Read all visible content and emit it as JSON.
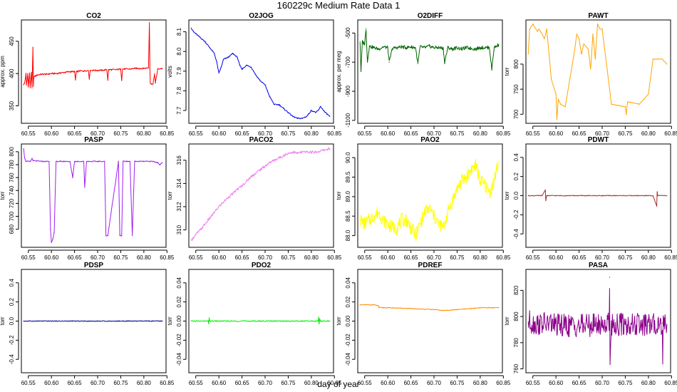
{
  "figure": {
    "title": "160229c   Medium Rate Data 1",
    "xlabel": "day of year"
  },
  "chart_data": [
    {
      "type": "line",
      "title": "CO2",
      "ylabel": "approx. ppm",
      "color": "#ff0000",
      "xlim": [
        60.535,
        60.848
      ],
      "ylim": [
        323,
        483
      ],
      "xticks": [
        60.55,
        60.6,
        60.65,
        60.7,
        60.75,
        60.8,
        60.85
      ],
      "yticks": [
        350,
        400,
        450
      ],
      "series": [
        {
          "x": [
            60.54,
            60.542,
            60.545,
            60.546,
            60.549,
            60.55,
            60.553,
            60.554,
            60.557,
            60.558,
            60.56,
            60.561,
            60.562,
            60.565,
            60.57,
            60.58,
            60.59,
            60.6,
            60.61,
            60.62,
            60.63,
            60.64,
            60.65,
            60.652,
            60.654,
            60.656,
            60.66,
            60.67,
            60.68,
            60.682,
            60.684,
            60.69,
            60.7,
            60.71,
            60.72,
            60.722,
            60.724,
            60.73,
            60.74,
            60.75,
            60.752,
            60.754,
            60.76,
            60.77,
            60.78,
            60.79,
            60.8,
            60.81,
            60.812,
            60.813,
            60.814,
            60.816,
            60.82,
            60.823,
            60.825,
            60.83,
            60.84
          ],
          "y": [
            383,
            385,
            400,
            382,
            400,
            380,
            401,
            378,
            402,
            378,
            440,
            380,
            395,
            396,
            398,
            399,
            399,
            400,
            400,
            401,
            402,
            403,
            403,
            390,
            403,
            403,
            404,
            404,
            405,
            392,
            405,
            405,
            405,
            405,
            406,
            390,
            406,
            406,
            406,
            407,
            390,
            407,
            407,
            407,
            408,
            408,
            408,
            409,
            479,
            409,
            385,
            384,
            384,
            400,
            385,
            407,
            408
          ]
        }
      ]
    },
    {
      "type": "line",
      "title": "O2JOG",
      "ylabel": "volts",
      "color": "#0000ee",
      "xlim": [
        60.535,
        60.848
      ],
      "ylim": [
        7.635,
        8.16
      ],
      "xticks": [
        60.55,
        60.6,
        60.65,
        60.7,
        60.75,
        60.8,
        60.85
      ],
      "yticks": [
        7.7,
        7.8,
        7.9,
        8.0,
        8.1
      ],
      "series": [
        {
          "x": [
            60.54,
            60.545,
            60.55,
            60.56,
            60.57,
            60.58,
            60.59,
            60.595,
            60.6,
            60.605,
            60.61,
            60.62,
            60.63,
            60.64,
            60.645,
            60.65,
            60.66,
            60.67,
            60.68,
            60.69,
            60.7,
            60.705,
            60.71,
            60.72,
            60.73,
            60.74,
            60.75,
            60.76,
            60.77,
            60.78,
            60.79,
            60.8,
            60.81,
            60.815,
            60.82,
            60.83,
            60.84
          ],
          "y": [
            8.12,
            8.1,
            8.09,
            8.07,
            8.05,
            8.02,
            7.99,
            7.95,
            7.89,
            7.92,
            7.96,
            7.97,
            7.99,
            7.97,
            7.93,
            7.91,
            7.93,
            7.92,
            7.88,
            7.85,
            7.83,
            7.8,
            7.77,
            7.73,
            7.73,
            7.71,
            7.69,
            7.67,
            7.66,
            7.66,
            7.67,
            7.7,
            7.69,
            7.7,
            7.72,
            7.69,
            7.67
          ]
        }
      ]
    },
    {
      "type": "line",
      "title": "O2DIFF",
      "ylabel": "approx. per meg",
      "color": "#006400",
      "xlim": [
        60.535,
        60.848
      ],
      "ylim": [
        -1120,
        -410
      ],
      "xticks": [
        60.55,
        60.6,
        60.65,
        60.7,
        60.75,
        60.8,
        60.85
      ],
      "yticks": [
        -1100,
        -900,
        -700,
        -500
      ],
      "series": [
        {
          "x": [
            60.54,
            60.542,
            60.545,
            60.55,
            60.553,
            60.556,
            60.56,
            60.57,
            60.58,
            60.59,
            60.6,
            60.603,
            60.61,
            60.62,
            60.63,
            60.64,
            60.65,
            60.66,
            60.665,
            60.67,
            60.68,
            60.69,
            60.7,
            60.71,
            60.72,
            60.723,
            60.73,
            60.74,
            60.75,
            60.76,
            60.77,
            60.78,
            60.79,
            60.8,
            60.81,
            60.82,
            60.825,
            60.83,
            60.84
          ],
          "y": [
            -560,
            -760,
            -560,
            -575,
            -470,
            -700,
            -590,
            -600,
            -610,
            -595,
            -600,
            -700,
            -605,
            -600,
            -595,
            -600,
            -595,
            -600,
            -710,
            -595,
            -600,
            -590,
            -600,
            -600,
            -605,
            -700,
            -600,
            -610,
            -600,
            -610,
            -600,
            -605,
            -610,
            -600,
            -600,
            -600,
            -750,
            -600,
            -580
          ]
        }
      ]
    },
    {
      "type": "line",
      "title": "PAWT",
      "ylabel": "torr",
      "color": "#ffa500",
      "xlim": [
        60.535,
        60.848
      ],
      "ylim": [
        682,
        888
      ],
      "xticks": [
        60.55,
        60.6,
        60.65,
        60.7,
        60.75,
        60.8,
        60.85
      ],
      "yticks": [
        700,
        750,
        800
      ],
      "series": [
        {
          "x": [
            60.54,
            60.543,
            60.55,
            60.56,
            60.563,
            60.57,
            60.575,
            60.58,
            60.59,
            60.6,
            60.602,
            60.605,
            60.61,
            60.62,
            60.63,
            60.64,
            60.645,
            60.65,
            60.655,
            60.66,
            60.67,
            60.675,
            60.68,
            60.685,
            60.69,
            60.695,
            60.7,
            60.72,
            60.75,
            60.752,
            60.755,
            60.78,
            60.8,
            60.81,
            60.82,
            60.83,
            60.84
          ],
          "y": [
            820,
            870,
            880,
            865,
            870,
            860,
            850,
            870,
            770,
            740,
            690,
            730,
            720,
            715,
            770,
            825,
            860,
            850,
            820,
            840,
            830,
            790,
            860,
            810,
            880,
            870,
            870,
            720,
            715,
            700,
            725,
            720,
            740,
            810,
            810,
            810,
            800
          ]
        }
      ]
    },
    {
      "type": "line",
      "title": "PASP",
      "ylabel": "torr",
      "color": "#a020f0",
      "xlim": [
        60.535,
        60.848
      ],
      "ylim": [
        652,
        812
      ],
      "xticks": [
        60.55,
        60.6,
        60.65,
        60.7,
        60.75,
        60.8,
        60.85
      ],
      "yticks": [
        680,
        700,
        720,
        740,
        760,
        780,
        800
      ],
      "series": [
        {
          "x": [
            60.54,
            60.542,
            60.545,
            60.555,
            60.558,
            60.56,
            60.58,
            60.595,
            60.598,
            60.6,
            60.603,
            60.606,
            60.61,
            60.62,
            60.64,
            60.646,
            60.65,
            60.67,
            60.672,
            60.676,
            60.7,
            60.715,
            60.718,
            60.722,
            60.745,
            60.748,
            60.752,
            60.755,
            60.77,
            60.775,
            60.78,
            60.82,
            60.83,
            60.835,
            60.84
          ],
          "y": [
            805,
            790,
            785,
            785,
            790,
            786,
            785,
            785,
            680,
            660,
            665,
            675,
            785,
            785,
            785,
            760,
            785,
            785,
            745,
            785,
            785,
            785,
            670,
            670,
            785,
            670,
            670,
            785,
            785,
            670,
            785,
            785,
            783,
            780,
            783
          ]
        }
      ]
    },
    {
      "type": "line",
      "title": "PACO2",
      "ylabel": "torr",
      "color": "#ee82ee",
      "xlim": [
        60.535,
        60.848
      ],
      "ylim": [
        308.5,
        317.4
      ],
      "xticks": [
        60.55,
        60.6,
        60.65,
        60.7,
        60.75,
        60.8,
        60.85
      ],
      "yticks": [
        310,
        312,
        314,
        316
      ],
      "series": [
        {
          "x": [
            60.54,
            60.55,
            60.56,
            60.57,
            60.58,
            60.59,
            60.6,
            60.61,
            60.62,
            60.63,
            60.64,
            60.65,
            60.66,
            60.67,
            60.68,
            60.69,
            60.7,
            60.71,
            60.72,
            60.73,
            60.74,
            60.75,
            60.76,
            60.77,
            60.78,
            60.79,
            60.8,
            60.81,
            60.82,
            60.83,
            60.84
          ],
          "y": [
            309.1,
            309.6,
            310.0,
            310.5,
            311.0,
            311.5,
            312.0,
            312.4,
            312.8,
            313.1,
            313.5,
            313.8,
            314.2,
            314.6,
            314.9,
            315.2,
            315.5,
            315.8,
            316.0,
            316.2,
            316.4,
            316.6,
            316.7,
            316.6,
            316.7,
            316.7,
            316.7,
            316.7,
            316.8,
            316.9,
            317.0
          ]
        }
      ]
    },
    {
      "type": "line",
      "title": "PAO2",
      "ylabel": "torr",
      "color": "#ffff00",
      "xlim": [
        60.535,
        60.848
      ],
      "ylim": [
        87.7,
        90.35
      ],
      "xticks": [
        60.55,
        60.6,
        60.65,
        60.7,
        60.75,
        60.8,
        60.85
      ],
      "yticks": [
        88.0,
        88.5,
        89.0,
        89.5,
        90.0
      ],
      "series": [
        {
          "x": [
            60.54,
            60.55,
            60.56,
            60.57,
            60.58,
            60.59,
            60.6,
            60.61,
            60.62,
            60.63,
            60.64,
            60.65,
            60.66,
            60.67,
            60.68,
            60.69,
            60.7,
            60.71,
            60.72,
            60.73,
            60.74,
            60.75,
            60.76,
            60.77,
            60.78,
            60.79,
            60.8,
            60.81,
            60.82,
            60.83,
            60.84
          ],
          "y": [
            88.4,
            88.3,
            88.4,
            88.5,
            88.6,
            88.4,
            88.3,
            88.2,
            88.2,
            88.4,
            88.4,
            88.2,
            88.0,
            88.3,
            88.6,
            88.7,
            88.5,
            88.3,
            88.2,
            88.6,
            88.9,
            89.2,
            89.4,
            89.5,
            89.7,
            89.8,
            89.4,
            89.3,
            89.1,
            89.4,
            89.9
          ]
        }
      ]
    },
    {
      "type": "line",
      "title": "PDWT",
      "ylabel": "torr",
      "color": "#a52a2a",
      "xlim": [
        60.535,
        60.848
      ],
      "ylim": [
        -0.54,
        0.54
      ],
      "xticks": [
        60.55,
        60.6,
        60.65,
        60.7,
        60.75,
        60.8,
        60.85
      ],
      "yticks": [
        -0.4,
        -0.2,
        0.0,
        0.2,
        0.4
      ],
      "series": [
        {
          "x": [
            60.54,
            60.57,
            60.577,
            60.578,
            60.58,
            60.62,
            60.7,
            60.78,
            60.81,
            60.818,
            60.819,
            60.82,
            60.84
          ],
          "y": [
            0.0,
            0.0,
            0.06,
            -0.05,
            0.0,
            0.0,
            0.0,
            0.0,
            0.0,
            -0.11,
            0.04,
            0.0,
            0.0
          ]
        }
      ]
    },
    {
      "type": "line",
      "title": "PDSP",
      "ylabel": "torr",
      "color": "#00008b",
      "xlim": [
        60.535,
        60.848
      ],
      "ylim": [
        -0.54,
        0.54
      ],
      "xticks": [
        60.55,
        60.6,
        60.65,
        60.7,
        60.75,
        60.8,
        60.85
      ],
      "yticks": [
        -0.4,
        -0.2,
        0.0,
        0.2,
        0.4
      ],
      "series": [
        {
          "x": [
            60.54,
            60.84
          ],
          "y": [
            0.0,
            0.0
          ]
        }
      ]
    },
    {
      "type": "line",
      "title": "PDO2",
      "ylabel": "torr",
      "color": "#00ee00",
      "xlim": [
        60.535,
        60.848
      ],
      "ylim": [
        -0.054,
        0.054
      ],
      "xticks": [
        60.55,
        60.6,
        60.65,
        60.7,
        60.75,
        60.8,
        60.85
      ],
      "yticks": [
        -0.04,
        -0.02,
        0.0,
        0.02,
        0.04
      ],
      "series": [
        {
          "x": [
            60.54,
            60.577,
            60.578,
            60.579,
            60.58,
            60.815,
            60.816,
            60.817,
            60.818,
            60.82,
            60.84
          ],
          "y": [
            0.0,
            0.0,
            -0.003,
            0.003,
            0.0,
            0.0,
            0.004,
            -0.003,
            0.002,
            0.0,
            0.0
          ]
        }
      ]
    },
    {
      "type": "line",
      "title": "PDREF",
      "ylabel": "torr",
      "color": "#ff8c00",
      "xlim": [
        60.535,
        60.848
      ],
      "ylim": [
        -0.054,
        0.054
      ],
      "xticks": [
        60.55,
        60.6,
        60.65,
        60.7,
        60.75,
        60.8,
        60.85
      ],
      "yticks": [
        -0.04,
        -0.02,
        0.0,
        0.02,
        0.04
      ],
      "series": [
        {
          "x": [
            60.54,
            60.57,
            60.58,
            60.581,
            60.6,
            60.65,
            60.7,
            60.72,
            60.75,
            60.78,
            60.8,
            60.84
          ],
          "y": [
            0.017,
            0.017,
            0.016,
            0.014,
            0.014,
            0.013,
            0.012,
            0.011,
            0.012,
            0.013,
            0.014,
            0.014
          ]
        }
      ]
    },
    {
      "type": "line",
      "title": "PASA",
      "ylabel": "torr",
      "color": "#8b008b",
      "xlim": [
        60.535,
        60.848
      ],
      "ylim": [
        757,
        836
      ],
      "xticks": [
        60.55,
        60.6,
        60.65,
        60.7,
        60.75,
        60.8,
        60.85
      ],
      "yticks": [
        760,
        780,
        800,
        820
      ],
      "series": [
        {
          "x": [
            60.54,
            60.55,
            60.56,
            60.57,
            60.58,
            60.59,
            60.6,
            60.65,
            60.7,
            60.715,
            60.716,
            60.717,
            60.72,
            60.75,
            60.8,
            60.83,
            60.831,
            60.832,
            60.835,
            60.84
          ],
          "y": [
            796,
            795,
            794,
            795,
            794,
            795,
            793,
            793,
            794,
            795,
            830,
            765,
            794,
            794,
            793,
            795,
            768,
            794,
            795,
            794
          ]
        }
      ]
    }
  ]
}
